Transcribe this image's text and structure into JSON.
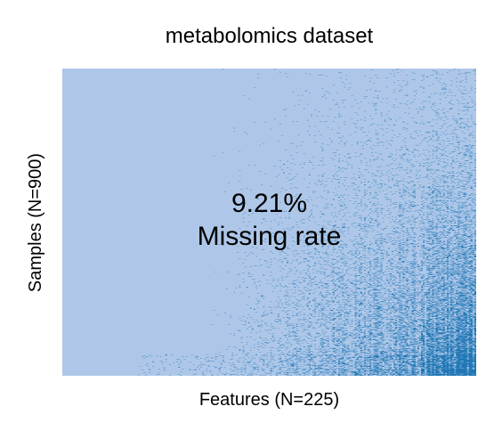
{
  "chart_data": {
    "type": "heatmap",
    "title": "metabolomics dataset",
    "xlabel": "Features (N=225)",
    "ylabel": "Samples (N=900)",
    "n_features": 225,
    "n_samples": 900,
    "missing_rate": 0.0921,
    "annotation": {
      "value": "9.21%",
      "label": "Missing rate"
    },
    "colors": {
      "observed": "#aec7e8",
      "missing": "#1f77b4"
    },
    "grid": false,
    "legend": "none"
  }
}
